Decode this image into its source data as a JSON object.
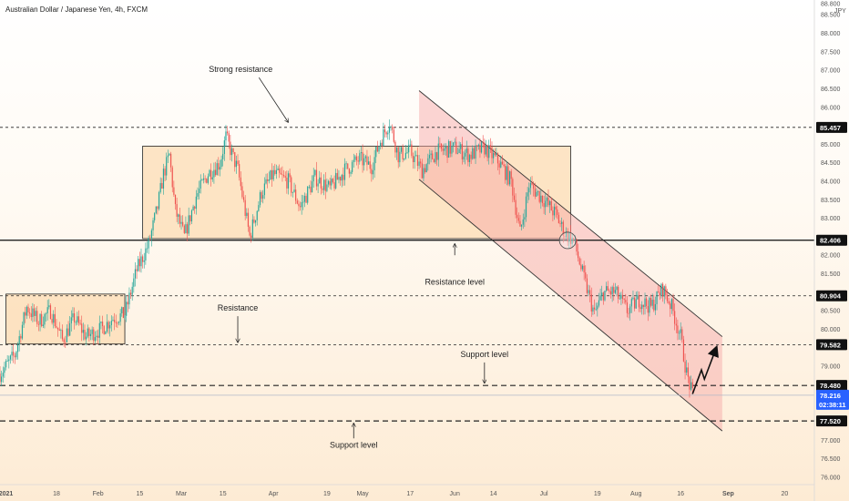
{
  "header": {
    "symbol": "Australian Dollar / Japanese Yen, 4h, FXCM"
  },
  "colors": {
    "up": "#26a69a",
    "down": "#ef5350",
    "zone_fill": "#fcdcb4",
    "channel_fill": "#f6a3a3",
    "price_badge": "#2962ff",
    "level_badge": "#111111"
  },
  "chart_data": {
    "type": "candlestick",
    "ylim": [
      75.8,
      88.9
    ],
    "y_ticks": [
      "76.000",
      "76.500",
      "77.000",
      "77.500",
      "78.000",
      "78.500",
      "79.000",
      "79.500",
      "80.000",
      "80.500",
      "81.000",
      "81.500",
      "82.000",
      "82.500",
      "83.000",
      "83.500",
      "84.000",
      "84.500",
      "85.000",
      "85.500",
      "86.000",
      "86.500",
      "87.000",
      "87.500",
      "88.000",
      "88.500",
      "88.800"
    ],
    "y_unit": "JPY",
    "x_ticks": [
      {
        "label": "2021",
        "date": "2021-01-01",
        "bold": true
      },
      {
        "label": "18",
        "date": "2021-01-18"
      },
      {
        "label": "Feb",
        "date": "2021-02-01"
      },
      {
        "label": "15",
        "date": "2021-02-15"
      },
      {
        "label": "Mar",
        "date": "2021-03-01"
      },
      {
        "label": "15",
        "date": "2021-03-15"
      },
      {
        "label": "Apr",
        "date": "2021-04-01"
      },
      {
        "label": "19",
        "date": "2021-04-19"
      },
      {
        "label": "May",
        "date": "2021-05-01"
      },
      {
        "label": "17",
        "date": "2021-05-17"
      },
      {
        "label": "Jun",
        "date": "2021-06-01"
      },
      {
        "label": "14",
        "date": "2021-06-14"
      },
      {
        "label": "Jul",
        "date": "2021-07-01"
      },
      {
        "label": "19",
        "date": "2021-07-19"
      },
      {
        "label": "Aug",
        "date": "2021-08-01"
      },
      {
        "label": "16",
        "date": "2021-08-16"
      },
      {
        "label": "Sep",
        "date": "2021-09-01",
        "bold": true
      },
      {
        "label": "20",
        "date": "2021-09-20"
      }
    ],
    "x_range": [
      "2020-12-30",
      "2021-09-30"
    ],
    "path": [
      [
        "2020-12-30",
        78.8
      ],
      [
        "2021-01-04",
        79.3
      ],
      [
        "2021-01-08",
        80.6
      ],
      [
        "2021-01-12",
        80.2
      ],
      [
        "2021-01-16",
        80.5
      ],
      [
        "2021-01-20",
        79.7
      ],
      [
        "2021-01-24",
        80.3
      ],
      [
        "2021-01-28",
        79.8
      ],
      [
        "2021-02-02",
        80.0
      ],
      [
        "2021-02-06",
        80.3
      ],
      [
        "2021-02-10",
        80.4
      ],
      [
        "2021-02-14",
        81.6
      ],
      [
        "2021-02-18",
        82.3
      ],
      [
        "2021-02-21",
        83.3
      ],
      [
        "2021-02-23",
        84.2
      ],
      [
        "2021-02-25",
        84.7
      ],
      [
        "2021-02-27",
        83.2
      ],
      [
        "2021-03-02",
        82.5
      ],
      [
        "2021-03-06",
        83.6
      ],
      [
        "2021-03-10",
        84.2
      ],
      [
        "2021-03-14",
        84.5
      ],
      [
        "2021-03-16",
        85.2
      ],
      [
        "2021-03-20",
        84.3
      ],
      [
        "2021-03-24",
        82.5
      ],
      [
        "2021-03-28",
        83.7
      ],
      [
        "2021-04-01",
        84.2
      ],
      [
        "2021-04-06",
        84.0
      ],
      [
        "2021-04-10",
        83.3
      ],
      [
        "2021-04-15",
        84.1
      ],
      [
        "2021-04-20",
        83.8
      ],
      [
        "2021-04-25",
        84.3
      ],
      [
        "2021-04-30",
        84.6
      ],
      [
        "2021-05-04",
        84.4
      ],
      [
        "2021-05-07",
        85.1
      ],
      [
        "2021-05-10",
        85.6
      ],
      [
        "2021-05-13",
        84.7
      ],
      [
        "2021-05-17",
        84.8
      ],
      [
        "2021-05-21",
        84.3
      ],
      [
        "2021-05-26",
        84.8
      ],
      [
        "2021-06-01",
        84.9
      ],
      [
        "2021-06-06",
        84.7
      ],
      [
        "2021-06-11",
        84.9
      ],
      [
        "2021-06-16",
        84.5
      ],
      [
        "2021-06-20",
        84.0
      ],
      [
        "2021-06-23",
        82.6
      ],
      [
        "2021-06-26",
        83.9
      ],
      [
        "2021-07-01",
        83.5
      ],
      [
        "2021-07-05",
        83.1
      ],
      [
        "2021-07-08",
        82.6
      ],
      [
        "2021-07-11",
        82.4
      ],
      [
        "2021-07-14",
        81.5
      ],
      [
        "2021-07-18",
        80.4
      ],
      [
        "2021-07-21",
        81.0
      ],
      [
        "2021-07-25",
        81.0
      ],
      [
        "2021-07-29",
        80.5
      ],
      [
        "2021-08-02",
        80.8
      ],
      [
        "2021-08-06",
        80.6
      ],
      [
        "2021-08-10",
        81.1
      ],
      [
        "2021-08-13",
        80.6
      ],
      [
        "2021-08-16",
        79.8
      ],
      [
        "2021-08-18",
        78.8
      ],
      [
        "2021-08-20",
        78.2
      ]
    ],
    "levels": [
      {
        "value": 85.457,
        "label": "85.457",
        "style": "dotted"
      },
      {
        "value": 82.406,
        "label": "82.406",
        "style": "solid"
      },
      {
        "value": 80.904,
        "label": "80.904",
        "style": "dotted"
      },
      {
        "value": 79.582,
        "label": "79.582",
        "style": "dotted"
      },
      {
        "value": 78.48,
        "label": "78.480",
        "style": "dashed"
      },
      {
        "value": 77.52,
        "label": "77.520",
        "style": "dashed"
      }
    ],
    "current_price": {
      "value": 78.216,
      "label": "78.216",
      "countdown": "02:38:11"
    },
    "zones": [
      {
        "x0": "2021-01-01",
        "x1": "2021-02-10",
        "y0": 79.6,
        "y1": 80.95
      },
      {
        "x0": "2021-02-16",
        "x1": "2021-07-10",
        "y0": 82.45,
        "y1": 84.95
      }
    ],
    "channel": {
      "upper": [
        [
          "2021-05-20",
          86.45
        ],
        [
          "2021-08-30",
          79.8
        ]
      ],
      "lower": [
        [
          "2021-05-20",
          84.05
        ],
        [
          "2021-08-30",
          77.25
        ]
      ]
    },
    "projection": [
      [
        "2021-08-20",
        78.25
      ],
      [
        "2021-08-23",
        78.9
      ],
      [
        "2021-08-24",
        78.65
      ],
      [
        "2021-08-28",
        79.5
      ]
    ],
    "marker_circle": {
      "date": "2021-07-09",
      "value": 82.4
    },
    "annotations": [
      {
        "text": "Strong resistance",
        "date": "2021-03-21",
        "value": 86.95,
        "arrow_to": 85.6
      },
      {
        "text": "Resistance level",
        "date": "2021-06-01",
        "value": 81.2,
        "arrow_from": 82.0,
        "arrow_to": 82.3
      },
      {
        "text": "Resistance",
        "date": "2021-03-20",
        "value": 80.5,
        "arrow_to": 79.65
      },
      {
        "text": "Support level",
        "date": "2021-06-11",
        "value": 79.25,
        "arrow_to": 78.55
      },
      {
        "text": "Support level",
        "date": "2021-04-28",
        "value": 76.8,
        "arrow_from": 77.05,
        "arrow_to": 77.45
      }
    ]
  }
}
